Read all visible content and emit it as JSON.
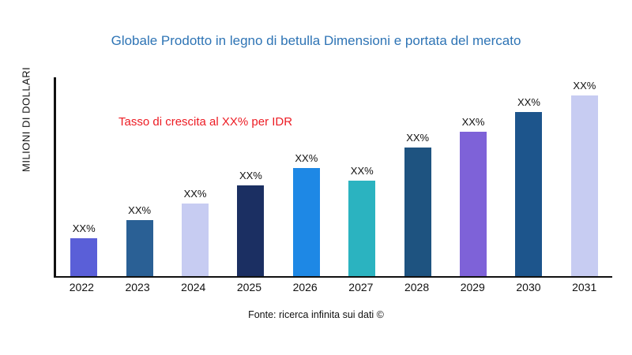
{
  "page": {
    "background": "#ffffff"
  },
  "header": {
    "title": "Globale Prodotto in legno di betulla Dimensioni e portata del mercato",
    "title_color": "#2e74b5"
  },
  "annotation": {
    "text": "Tasso di crescita al XX% per IDR",
    "color": "#ed1c24"
  },
  "axis": {
    "y_label": "MILIONI DI DOLLARI"
  },
  "footer": {
    "text": "Fonte: ricerca infinita sui dati ©"
  },
  "chart_data": {
    "type": "bar",
    "title": "Globale Prodotto in legno di betulla Dimensioni e portata del mercato",
    "categories": [
      "2022",
      "2023",
      "2024",
      "2025",
      "2026",
      "2027",
      "2028",
      "2029",
      "2030",
      "2031"
    ],
    "values": [
      21,
      31,
      40,
      50,
      60,
      53,
      71,
      80,
      91,
      100
    ],
    "bar_labels": [
      "XX%",
      "XX%",
      "XX%",
      "XX%",
      "XX%",
      "XX%",
      "XX%",
      "XX%",
      "XX%",
      "XX%"
    ],
    "colors": [
      "#5a5fd8",
      "#2a6095",
      "#c7ccf2",
      "#1b2f62",
      "#1e88e5",
      "#2bb3c0",
      "#1e5380",
      "#7e62d8",
      "#1d558c",
      "#c7ccf2"
    ],
    "xlabel": "",
    "ylabel": "MILIONI DI DOLLARI",
    "ylim": [
      0,
      110
    ],
    "grid": false,
    "legend": false,
    "annotation": "Tasso di crescita al XX% per IDR"
  }
}
